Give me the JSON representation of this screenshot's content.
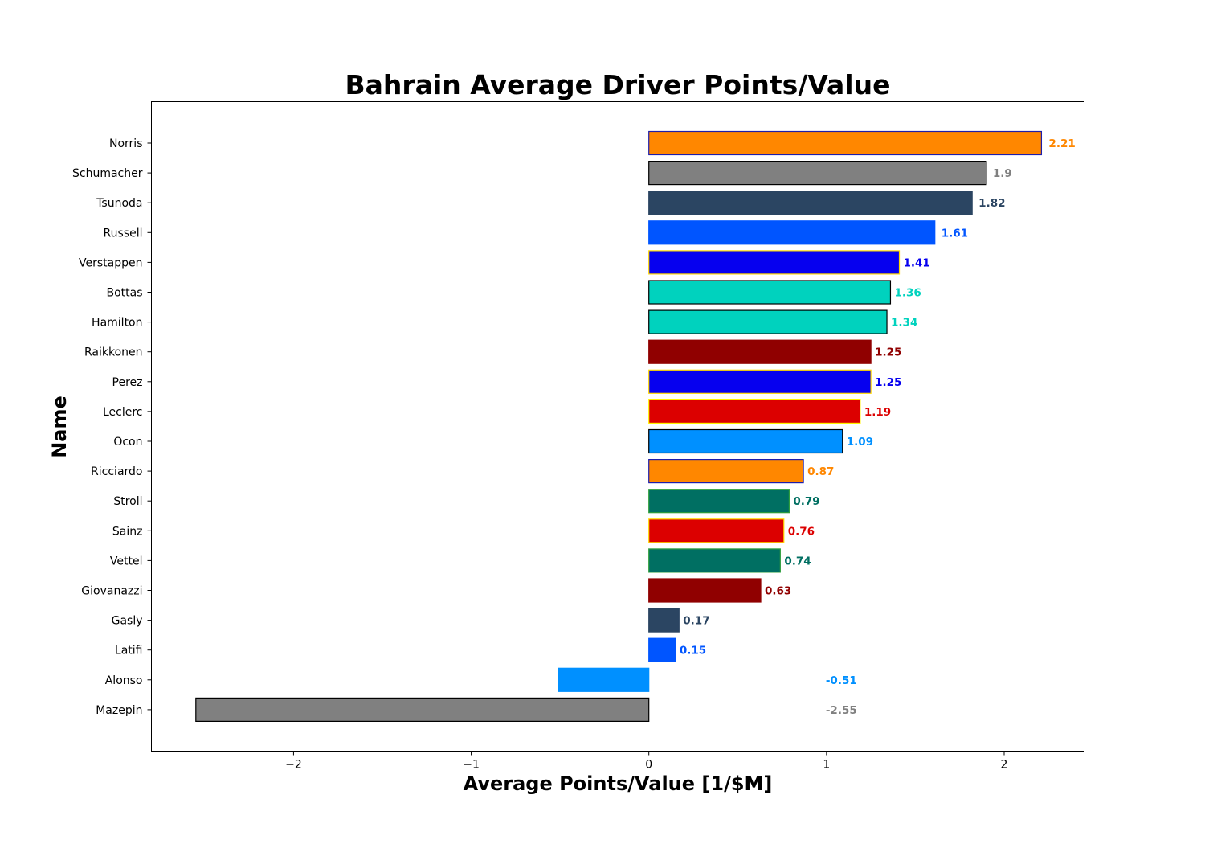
{
  "chart_data": {
    "type": "bar",
    "orientation": "horizontal",
    "title": "Bahrain Average Driver Points/Value",
    "xlabel": "Average Points/Value [1/$M]",
    "ylabel": "Name",
    "xlim": [
      -2.8,
      2.45
    ],
    "xticks": [
      -2,
      -1,
      0,
      1,
      2
    ],
    "xtick_labels": [
      "−2",
      "−1",
      "0",
      "1",
      "2"
    ],
    "grid": false,
    "categories": [
      "Norris",
      "Schumacher",
      "Tsunoda",
      "Russell",
      "Verstappen",
      "Bottas",
      "Hamilton",
      "Raikkonen",
      "Perez",
      "Leclerc",
      "Ocon",
      "Ricciardo",
      "Stroll",
      "Sainz",
      "Vettel",
      "Giovanazzi",
      "Gasly",
      "Latifi",
      "Alonso",
      "Mazepin"
    ],
    "values": [
      2.21,
      1.9,
      1.82,
      1.61,
      1.41,
      1.36,
      1.34,
      1.25,
      1.25,
      1.19,
      1.09,
      0.87,
      0.79,
      0.76,
      0.74,
      0.63,
      0.17,
      0.15,
      -0.51,
      -2.55
    ],
    "value_labels": [
      "2.21",
      "1.9",
      "1.82",
      "1.61",
      "1.41",
      "1.36",
      "1.34",
      "1.25",
      "1.25",
      "1.19",
      "1.09",
      "0.87",
      "0.79",
      "0.76",
      "0.74",
      "0.63",
      "0.17",
      "0.15",
      "-0.51",
      "-2.55"
    ],
    "colors": [
      "#FF8700",
      "#808080",
      "#2B4562",
      "#0055FF",
      "#0600EF",
      "#00D2BE",
      "#00D2BE",
      "#900000",
      "#0600EF",
      "#DC0000",
      "#0090FF",
      "#FF8700",
      "#006F62",
      "#DC0000",
      "#006F62",
      "#900000",
      "#2B4562",
      "#0055FF",
      "#0090FF",
      "#808080"
    ],
    "edge_colors": [
      "#1E1EAA",
      "#000000",
      "#2B4562",
      "#0055FF",
      "#FFD700",
      "#000000",
      "#000000",
      "#900000",
      "#FFD700",
      "#FFF200",
      "#000000",
      "#1E1EAA",
      "#2E9E3E",
      "#FFD700",
      "#2E9E3E",
      "#900000",
      "#2B4562",
      "#0055FF",
      "#0090FF",
      "#000000"
    ]
  }
}
